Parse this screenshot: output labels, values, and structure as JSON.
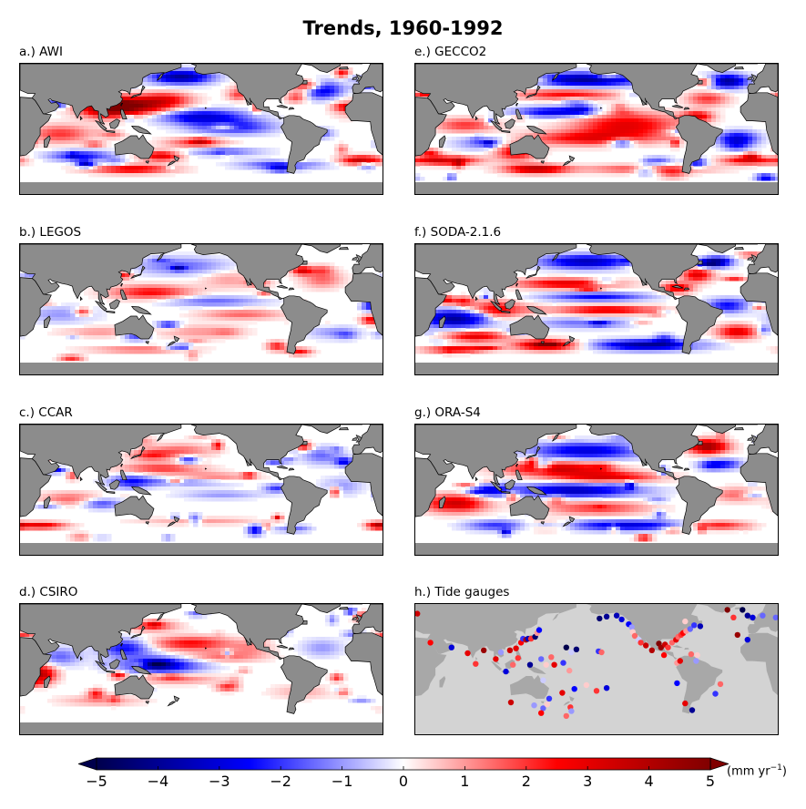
{
  "title": "Trends, 1960-1992",
  "panels": [
    {
      "id": "a",
      "label": "a.)  AWI",
      "pattern": "awi"
    },
    {
      "id": "b",
      "label": "b.)  LEGOS",
      "pattern": "legos"
    },
    {
      "id": "c",
      "label": "c.)  CCAR",
      "pattern": "ccar"
    },
    {
      "id": "d",
      "label": "d.)  CSIRO",
      "pattern": "csiro"
    },
    {
      "id": "e",
      "label": "e.)  GECCO2",
      "pattern": "gecco2"
    },
    {
      "id": "f",
      "label": "f.)  SODA-2.1.6",
      "pattern": "soda"
    },
    {
      "id": "g",
      "label": "g.)  ORA-S4",
      "pattern": "oras4"
    },
    {
      "id": "h",
      "label": "h.)  Tide gauges",
      "pattern": "tide"
    }
  ],
  "colorbar": {
    "ticks": [
      "−5",
      "−4",
      "−3",
      "−2",
      "−1",
      "0",
      "1",
      "2",
      "3",
      "4",
      "5"
    ],
    "units_main": "(mm yr",
    "units_sup": "−1",
    "units_close": ")",
    "range": [
      -5,
      5
    ],
    "colormap": "seismic",
    "extend": "both"
  },
  "colors": {
    "land": "#8c8c8c",
    "land_tide": "#a8a8a8",
    "ocean_tide": "#d3d3d3",
    "neg_max": "#00004c",
    "neg_mid": "#0000ff",
    "zero": "#ffffff",
    "pos_mid": "#ff0000",
    "pos_max": "#800000"
  },
  "tide_gauges": [
    {
      "lon": 22,
      "lat": 60,
      "value": 3.5
    },
    {
      "lon": 18,
      "lat": 56,
      "value": -1.5
    },
    {
      "lon": 35,
      "lat": 30,
      "value": 2.5
    },
    {
      "lon": 56,
      "lat": 25,
      "value": -3.0
    },
    {
      "lon": 72,
      "lat": 19,
      "value": 3.0
    },
    {
      "lon": 80,
      "lat": 8,
      "value": 2.0
    },
    {
      "lon": 88,
      "lat": 22,
      "value": 4.5
    },
    {
      "lon": 100,
      "lat": 13,
      "value": 3.0
    },
    {
      "lon": 105,
      "lat": 20,
      "value": -1.0
    },
    {
      "lon": 114,
      "lat": 22,
      "value": 3.5
    },
    {
      "lon": 120,
      "lat": 24,
      "value": 3.0
    },
    {
      "lon": 125,
      "lat": 30,
      "value": 2.5
    },
    {
      "lon": 127,
      "lat": 34,
      "value": -2.0
    },
    {
      "lon": 130,
      "lat": 33,
      "value": 4.0
    },
    {
      "lon": 132,
      "lat": 34,
      "value": -3.5
    },
    {
      "lon": 135,
      "lat": 34,
      "value": 2.0
    },
    {
      "lon": 139,
      "lat": 36,
      "value": -4.5
    },
    {
      "lon": 141,
      "lat": 40,
      "value": 1.0
    },
    {
      "lon": 143,
      "lat": 43,
      "value": -2.5
    },
    {
      "lon": 117,
      "lat": 7,
      "value": 1.5
    },
    {
      "lon": 110,
      "lat": 0,
      "value": -3.0
    },
    {
      "lon": 122,
      "lat": 14,
      "value": 2.0
    },
    {
      "lon": 134,
      "lat": 7,
      "value": -4.0
    },
    {
      "lon": 150,
      "lat": 7,
      "value": 0.5
    },
    {
      "lon": 145,
      "lat": 13,
      "value": -1.5
    },
    {
      "lon": 158,
      "lat": 7,
      "value": 3.0
    },
    {
      "lon": 167,
      "lat": 9,
      "value": -2.0
    },
    {
      "lon": 173,
      "lat": 1,
      "value": 1.0
    },
    {
      "lon": 155,
      "lat": 15,
      "value": 1.5
    },
    {
      "lon": 180,
      "lat": 23,
      "value": -4.5
    },
    {
      "lon": 170,
      "lat": 25,
      "value": -5.0
    },
    {
      "lon": 175,
      "lat": 20,
      "value": -0.5
    },
    {
      "lon": 115,
      "lat": -32,
      "value": 3.5
    },
    {
      "lon": 138,
      "lat": -35,
      "value": -1.0
    },
    {
      "lon": 147,
      "lat": -38,
      "value": -1.5
    },
    {
      "lon": 151,
      "lat": -34,
      "value": 0.5
    },
    {
      "lon": 145,
      "lat": -43,
      "value": 2.5
    },
    {
      "lon": 153,
      "lat": -28,
      "value": -2.0
    },
    {
      "lon": 174,
      "lat": -37,
      "value": 2.0
    },
    {
      "lon": 175,
      "lat": -41,
      "value": -1.0
    },
    {
      "lon": 170,
      "lat": -46,
      "value": 1.5
    },
    {
      "lon": 147,
      "lat": -9,
      "value": -0.5
    },
    {
      "lon": 166,
      "lat": -22,
      "value": 3.0
    },
    {
      "lon": 178,
      "lat": -18,
      "value": -2.5
    },
    {
      "lon": 190,
      "lat": -14,
      "value": 0.5
    },
    {
      "lon": 210,
      "lat": -17,
      "value": -3.0
    },
    {
      "lon": 200,
      "lat": -20,
      "value": 2.0
    },
    {
      "lon": 202,
      "lat": 21,
      "value": -2.0
    },
    {
      "lon": 205,
      "lat": 20,
      "value": 1.5
    },
    {
      "lon": 203,
      "lat": 55,
      "value": -4.5
    },
    {
      "lon": 210,
      "lat": 57,
      "value": -4.0
    },
    {
      "lon": 220,
      "lat": 58,
      "value": -3.5
    },
    {
      "lon": 225,
      "lat": 54,
      "value": -3.0
    },
    {
      "lon": 232,
      "lat": 49,
      "value": -2.5
    },
    {
      "lon": 235,
      "lat": 46,
      "value": -1.0
    },
    {
      "lon": 236,
      "lat": 41,
      "value": 0.5
    },
    {
      "lon": 238,
      "lat": 37,
      "value": 1.5
    },
    {
      "lon": 242,
      "lat": 33,
      "value": -0.5
    },
    {
      "lon": 244,
      "lat": 30,
      "value": 2.0
    },
    {
      "lon": 249,
      "lat": 27,
      "value": 3.5
    },
    {
      "lon": 255,
      "lat": 22,
      "value": 4.0
    },
    {
      "lon": 262,
      "lat": 29,
      "value": 5.0
    },
    {
      "lon": 264,
      "lat": 25,
      "value": 4.5
    },
    {
      "lon": 268,
      "lat": 28,
      "value": 3.5
    },
    {
      "lon": 271,
      "lat": 25,
      "value": 2.0
    },
    {
      "lon": 275,
      "lat": 30,
      "value": 1.5
    },
    {
      "lon": 279,
      "lat": 33,
      "value": 3.0
    },
    {
      "lon": 281,
      "lat": 36,
      "value": 1.5
    },
    {
      "lon": 284,
      "lat": 38,
      "value": 2.0
    },
    {
      "lon": 286,
      "lat": 40,
      "value": 2.5
    },
    {
      "lon": 289,
      "lat": 42,
      "value": 1.0
    },
    {
      "lon": 293,
      "lat": 44,
      "value": -1.5
    },
    {
      "lon": 297,
      "lat": 48,
      "value": -2.0
    },
    {
      "lon": 303,
      "lat": 47,
      "value": -3.5
    },
    {
      "lon": 288,
      "lat": 52,
      "value": 0.5
    },
    {
      "lon": 267,
      "lat": 17,
      "value": 2.5
    },
    {
      "lon": 280,
      "lat": 9,
      "value": 1.0
    },
    {
      "lon": 283,
      "lat": 11,
      "value": 3.0
    },
    {
      "lon": 294,
      "lat": 18,
      "value": 1.5
    },
    {
      "lon": 299,
      "lat": 11,
      "value": -1.0
    },
    {
      "lon": 300,
      "lat": 17,
      "value": 0.5
    },
    {
      "lon": 280,
      "lat": -12,
      "value": -2.5
    },
    {
      "lon": 288,
      "lat": -33,
      "value": 3.0
    },
    {
      "lon": 295,
      "lat": -40,
      "value": -4.0
    },
    {
      "lon": 323,
      "lat": -13,
      "value": 1.5
    },
    {
      "lon": 318,
      "lat": -23,
      "value": -2.0
    },
    {
      "lon": 340,
      "lat": 38,
      "value": 4.5
    },
    {
      "lon": 350,
      "lat": 58,
      "value": -4.0
    },
    {
      "lon": 355,
      "lat": 56,
      "value": -3.0
    },
    {
      "lon": 345,
      "lat": 64,
      "value": -5.0
    },
    {
      "lon": 330,
      "lat": 64,
      "value": 5.0
    },
    {
      "lon": 336,
      "lat": 56,
      "value": 2.0
    },
    {
      "lon": 5,
      "lat": 58,
      "value": -1.5
    },
    {
      "lon": 350,
      "lat": 33,
      "value": -3.0
    }
  ]
}
